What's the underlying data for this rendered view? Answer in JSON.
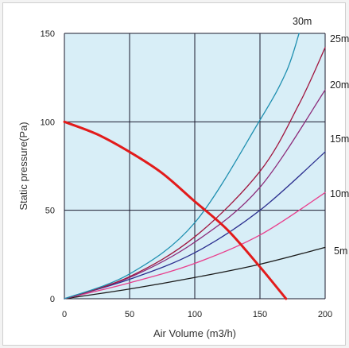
{
  "chart_data": {
    "type": "line",
    "xlabel": "Air Volume (m3/h)",
    "ylabel": "Static pressure(Pa)",
    "xlim": [
      0,
      200
    ],
    "ylim": [
      0,
      150
    ],
    "x_ticks": [
      "0",
      "50",
      "100",
      "150",
      "200"
    ],
    "y_ticks": [
      "0",
      "50",
      "100",
      "150"
    ],
    "grid": true,
    "background_color": "#d8eef7",
    "grid_color": "#1a1a2e",
    "series": [
      {
        "name": "5m",
        "color": "#1a1a1a",
        "width": 1.3,
        "x": [
          0,
          50,
          100,
          150,
          200
        ],
        "y": [
          0,
          5.5,
          12,
          19.5,
          29
        ]
      },
      {
        "name": "10m",
        "color": "#e83e8c",
        "width": 1.3,
        "x": [
          0,
          50,
          100,
          150,
          200
        ],
        "y": [
          0,
          9,
          20,
          36,
          60
        ]
      },
      {
        "name": "15m",
        "color": "#2b2f8f",
        "width": 1.3,
        "x": [
          0,
          50,
          100,
          150,
          200
        ],
        "y": [
          0,
          11,
          26,
          50,
          83
        ]
      },
      {
        "name": "20m",
        "color": "#8b2a7a",
        "width": 1.3,
        "x": [
          0,
          50,
          100,
          150,
          200
        ],
        "y": [
          0,
          12,
          32,
          63,
          118
        ]
      },
      {
        "name": "25m",
        "color": "#a0153e",
        "width": 1.3,
        "x": [
          0,
          50,
          100,
          150,
          180,
          200
        ],
        "y": [
          0,
          12.5,
          35,
          72,
          110,
          142
        ]
      },
      {
        "name": "30m",
        "color": "#1e8fb0",
        "width": 1.3,
        "x": [
          0,
          50,
          100,
          150,
          170,
          180
        ],
        "y": [
          0,
          14,
          43,
          101,
          128,
          150
        ]
      },
      {
        "name": "",
        "color": "#e21b1b",
        "width": 3,
        "x": [
          0,
          25,
          50,
          75,
          100,
          125,
          150,
          170
        ],
        "y": [
          100,
          93,
          83,
          71,
          55,
          39,
          18,
          0
        ]
      }
    ]
  }
}
